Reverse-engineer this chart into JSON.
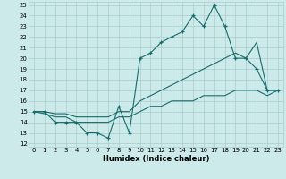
{
  "xlabel": "Humidex (Indice chaleur)",
  "x_values": [
    0,
    1,
    2,
    3,
    4,
    5,
    6,
    7,
    8,
    9,
    10,
    11,
    12,
    13,
    14,
    15,
    16,
    17,
    18,
    19,
    20,
    21,
    22,
    23
  ],
  "line_main": [
    15,
    15,
    14,
    14,
    14,
    13,
    13,
    12.5,
    15.5,
    13,
    20,
    20.5,
    21.5,
    22,
    22.5,
    24,
    23,
    25,
    23,
    20,
    20,
    19,
    17,
    17
  ],
  "line_upper": [
    15,
    15,
    14.8,
    14.8,
    14.5,
    14.5,
    14.5,
    14.5,
    15,
    15,
    16,
    16.5,
    17,
    17.5,
    18,
    18.5,
    19,
    19.5,
    20,
    20.5,
    20,
    21.5,
    17,
    17
  ],
  "line_lower": [
    15,
    14.8,
    14.5,
    14.5,
    14,
    14,
    14,
    14,
    14.5,
    14.5,
    15,
    15.5,
    15.5,
    16,
    16,
    16,
    16.5,
    16.5,
    16.5,
    17,
    17,
    17,
    16.5,
    17
  ],
  "ylim_min": 12,
  "ylim_max": 25,
  "xlim_min": -0.5,
  "xlim_max": 23.5,
  "yticks": [
    12,
    13,
    14,
    15,
    16,
    17,
    18,
    19,
    20,
    21,
    22,
    23,
    24,
    25
  ],
  "xticks": [
    0,
    1,
    2,
    3,
    4,
    5,
    6,
    7,
    8,
    9,
    10,
    11,
    12,
    13,
    14,
    15,
    16,
    17,
    18,
    19,
    20,
    21,
    22,
    23
  ],
  "line_color": "#1a6b6b",
  "bg_color": "#cceaea",
  "grid_color": "#aacccc"
}
